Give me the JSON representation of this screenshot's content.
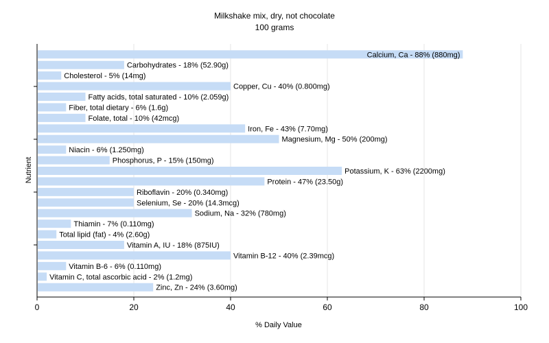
{
  "chart_data": {
    "type": "bar",
    "orientation": "horizontal",
    "title": "Milkshake mix, dry, not chocolate",
    "subtitle": "100 grams",
    "xlabel": "% Daily Value",
    "ylabel": "Nutrient",
    "xlim": [
      0,
      100
    ],
    "xticks": [
      0,
      20,
      40,
      60,
      80,
      100
    ],
    "grid": true,
    "bar_color": "#c6dcf6",
    "categories": [
      "Calcium, Ca",
      "Carbohydrates",
      "Cholesterol",
      "Copper, Cu",
      "Fatty acids, total saturated",
      "Fiber, total dietary",
      "Folate, total",
      "Iron, Fe",
      "Magnesium, Mg",
      "Niacin",
      "Phosphorus, P",
      "Potassium, K",
      "Protein",
      "Riboflavin",
      "Selenium, Se",
      "Sodium, Na",
      "Thiamin",
      "Total lipid (fat)",
      "Vitamin A, IU",
      "Vitamin B-12",
      "Vitamin B-6",
      "Vitamin C, total ascorbic acid",
      "Zinc, Zn"
    ],
    "values": [
      88,
      18,
      5,
      40,
      10,
      6,
      10,
      43,
      50,
      6,
      15,
      63,
      47,
      20,
      20,
      32,
      7,
      4,
      18,
      40,
      6,
      2,
      24
    ],
    "labels": [
      "Calcium, Ca - 88% (880mg)",
      "Carbohydrates - 18% (52.90g)",
      "Cholesterol - 5% (14mg)",
      "Copper, Cu - 40% (0.800mg)",
      "Fatty acids, total saturated - 10% (2.059g)",
      "Fiber, total dietary - 6% (1.6g)",
      "Folate, total - 10% (42mcg)",
      "Iron, Fe - 43% (7.70mg)",
      "Magnesium, Mg - 50% (200mg)",
      "Niacin - 6% (1.250mg)",
      "Phosphorus, P - 15% (150mg)",
      "Potassium, K - 63% (2200mg)",
      "Protein - 47% (23.50g)",
      "Riboflavin - 20% (0.340mg)",
      "Selenium, Se - 20% (14.3mcg)",
      "Sodium, Na - 32% (780mg)",
      "Thiamin - 7% (0.110mg)",
      "Total lipid (fat) - 4% (2.60g)",
      "Vitamin A, IU - 18% (875IU)",
      "Vitamin B-12 - 40% (2.39mcg)",
      "Vitamin B-6 - 6% (0.110mg)",
      "Vitamin C, total ascorbic acid - 2% (1.2mg)",
      "Zinc, Zn - 24% (3.60mg)"
    ]
  }
}
